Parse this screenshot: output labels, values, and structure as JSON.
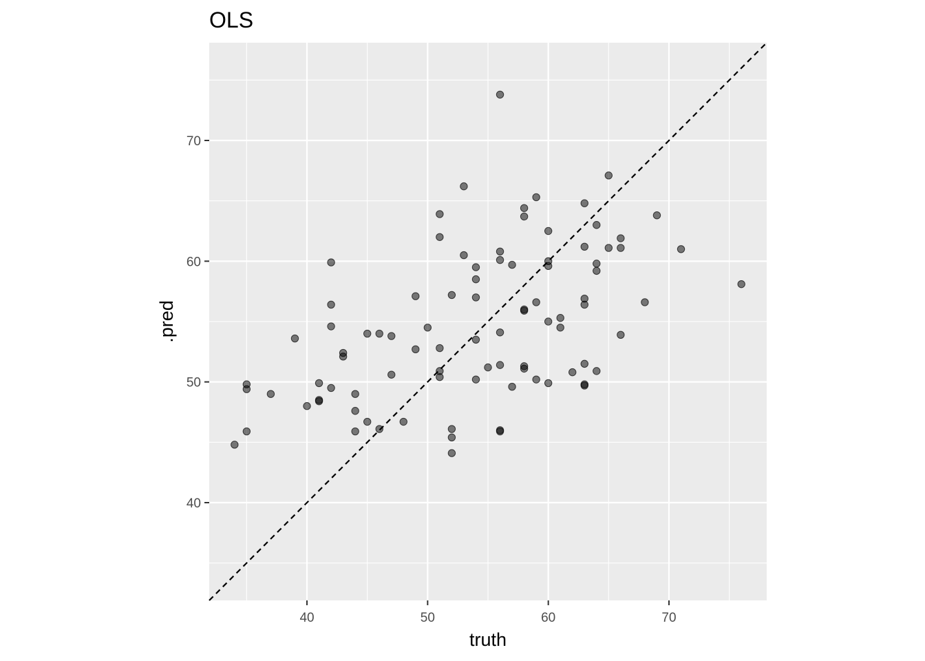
{
  "chart_data": {
    "type": "scatter",
    "title": "OLS",
    "xlabel": "truth",
    "ylabel": ".pred",
    "xlim": [
      31.9,
      78.1
    ],
    "ylim": [
      31.9,
      78.1
    ],
    "xticks": [
      40,
      50,
      60,
      70
    ],
    "yticks": [
      40,
      50,
      60,
      70
    ],
    "grid": true,
    "reference_line": "y = x",
    "point_color": "#000000",
    "point_alpha": 0.5,
    "panel_background": "#EBEBEB",
    "x": [
      34,
      35,
      35,
      35,
      37,
      39,
      40,
      41,
      41,
      41,
      42,
      42,
      42,
      42,
      43,
      43,
      44,
      44,
      44,
      45,
      45,
      46,
      46,
      47,
      47,
      48,
      49,
      49,
      50,
      51,
      51,
      51,
      51,
      51,
      52,
      52,
      52,
      52,
      53,
      53,
      54,
      54,
      54,
      54,
      54,
      55,
      56,
      56,
      56,
      56,
      56,
      56,
      56,
      57,
      57,
      58,
      58,
      58,
      58,
      58,
      58,
      59,
      59,
      59,
      60,
      60,
      60,
      60,
      60,
      61,
      61,
      62,
      63,
      63,
      63,
      63,
      63,
      63,
      63,
      64,
      64,
      64,
      64,
      65,
      65,
      66,
      66,
      66,
      68,
      69,
      71,
      76
    ],
    "y": [
      44.8,
      49.8,
      49.4,
      45.9,
      49.0,
      53.6,
      48.0,
      49.9,
      48.5,
      48.4,
      59.9,
      56.4,
      54.6,
      49.5,
      52.4,
      52.1,
      49.0,
      47.6,
      45.9,
      54.0,
      46.7,
      54.0,
      46.1,
      53.8,
      50.6,
      46.7,
      57.1,
      52.7,
      54.5,
      63.9,
      62.0,
      52.8,
      50.9,
      50.4,
      57.2,
      46.1,
      45.4,
      44.1,
      66.2,
      60.5,
      59.5,
      58.5,
      57.0,
      53.5,
      50.2,
      51.2,
      73.8,
      60.8,
      60.1,
      54.1,
      51.4,
      46.0,
      45.9,
      59.7,
      49.6,
      64.4,
      63.7,
      56.0,
      55.9,
      51.3,
      51.1,
      65.3,
      56.6,
      50.2,
      62.5,
      60.0,
      59.6,
      55.0,
      49.9,
      55.3,
      54.5,
      50.8,
      64.8,
      61.2,
      56.9,
      56.4,
      51.5,
      49.7,
      49.8,
      63.0,
      59.8,
      59.2,
      50.9,
      67.1,
      61.1,
      61.9,
      61.1,
      53.9,
      56.6,
      63.8,
      61.0,
      58.1
    ]
  }
}
